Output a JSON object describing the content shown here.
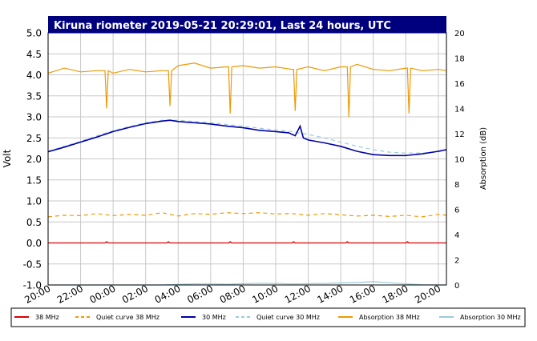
{
  "chart_data": {
    "type": "line",
    "title": "Kiruna riometer 2019-05-21 20:29:01, Last 24 hours, UTC",
    "ylabel": "Volt",
    "y2label": "Absorption (dB)",
    "ylim": [
      -1.0,
      5.0
    ],
    "y2lim": [
      0,
      20
    ],
    "xlim": [
      20,
      44.5
    ],
    "grid": true,
    "legend_position": "bottom",
    "y_ticks": [
      "5.0",
      "4.5",
      "4.0",
      "3.5",
      "3.0",
      "2.5",
      "2.0",
      "1.5",
      "1.0",
      "0.5",
      "0.0",
      "-0.5",
      "-1.0"
    ],
    "y2_ticks": [
      "20",
      "18",
      "16",
      "14",
      "12",
      "10",
      "8",
      "6",
      "4",
      "2",
      "0"
    ],
    "x_ticks": [
      "20:00",
      "22:00",
      "00:00",
      "02:00",
      "04:00",
      "06:00",
      "08:00",
      "10:00",
      "12:00",
      "14:00",
      "16:00",
      "18:00",
      "20:00"
    ],
    "series": [
      {
        "name": "38 MHz",
        "color": "#dd0000",
        "dash": "solid",
        "axis": "left",
        "x": [
          20,
          23.5,
          23.6,
          23.7,
          27.3,
          27.4,
          27.5,
          31.1,
          31.2,
          31.3,
          35.0,
          35.1,
          35.2,
          38.3,
          38.4,
          38.5,
          42.0,
          42.1,
          42.2,
          44.5
        ],
        "values": [
          0.0,
          0.0,
          0.03,
          0.0,
          0.0,
          0.03,
          0.0,
          0.0,
          0.03,
          0.0,
          0.0,
          0.03,
          0.0,
          0.0,
          0.03,
          0.0,
          0.0,
          0.03,
          0.0,
          0.0
        ]
      },
      {
        "name": "Quiet curve 38 MHz",
        "color": "#ee9900",
        "dash": "dashed",
        "axis": "left",
        "x": [
          20,
          21,
          22,
          23,
          24,
          25,
          26,
          27,
          28,
          29,
          30,
          31,
          32,
          33,
          34,
          35,
          36,
          37,
          38,
          39,
          40,
          41,
          42,
          43,
          44,
          44.5
        ],
        "values": [
          0.62,
          0.66,
          0.65,
          0.7,
          0.65,
          0.68,
          0.66,
          0.72,
          0.64,
          0.7,
          0.68,
          0.72,
          0.7,
          0.72,
          0.69,
          0.7,
          0.66,
          0.7,
          0.67,
          0.64,
          0.66,
          0.63,
          0.66,
          0.62,
          0.68,
          0.66
        ]
      },
      {
        "name": "30 MHz",
        "color": "#0000aa",
        "dash": "solid",
        "axis": "left",
        "x": [
          20,
          21,
          22,
          23,
          24,
          25,
          26,
          27,
          27.5,
          28,
          29,
          30,
          31,
          32,
          33,
          34,
          34.8,
          35.2,
          35.5,
          35.7,
          36,
          37,
          38,
          39,
          40,
          41,
          42,
          43,
          44,
          44.5
        ],
        "values": [
          2.17,
          2.28,
          2.4,
          2.52,
          2.65,
          2.75,
          2.84,
          2.9,
          2.92,
          2.89,
          2.86,
          2.83,
          2.78,
          2.74,
          2.68,
          2.65,
          2.62,
          2.55,
          2.78,
          2.5,
          2.45,
          2.38,
          2.3,
          2.18,
          2.1,
          2.08,
          2.08,
          2.12,
          2.18,
          2.22
        ]
      },
      {
        "name": "Quiet curve 30 MHz",
        "color": "#99ccdd",
        "dash": "dashed",
        "axis": "left",
        "x": [
          20,
          21,
          22,
          23,
          24,
          25,
          26,
          27,
          28,
          29,
          30,
          31,
          32,
          33,
          34,
          35,
          36,
          37,
          38,
          39,
          40,
          41,
          42,
          43,
          44,
          44.5
        ],
        "values": [
          2.18,
          2.3,
          2.42,
          2.55,
          2.67,
          2.77,
          2.86,
          2.92,
          2.92,
          2.89,
          2.86,
          2.82,
          2.78,
          2.73,
          2.69,
          2.65,
          2.58,
          2.5,
          2.4,
          2.3,
          2.22,
          2.16,
          2.14,
          2.14,
          2.17,
          2.2
        ]
      },
      {
        "name": "Absorption 38 MHz",
        "color": "#ee9900",
        "dash": "solid",
        "axis": "right",
        "x": [
          20,
          21,
          22,
          23,
          23.5,
          23.6,
          23.7,
          24,
          25,
          26,
          27,
          27.4,
          27.5,
          27.6,
          28,
          29,
          30,
          31,
          31.1,
          31.2,
          31.3,
          32,
          33,
          34,
          35,
          35.1,
          35.2,
          35.3,
          36,
          37,
          38,
          38.4,
          38.5,
          38.6,
          39,
          40,
          41,
          42,
          42.1,
          42.2,
          42.3,
          43,
          44,
          44.5
        ],
        "values": [
          16.8,
          17.2,
          16.9,
          17.0,
          17.0,
          14.0,
          17.0,
          16.8,
          17.1,
          16.9,
          17.0,
          17.0,
          14.2,
          17.0,
          17.4,
          17.6,
          17.2,
          17.3,
          17.3,
          13.6,
          17.3,
          17.4,
          17.2,
          17.3,
          17.1,
          17.1,
          13.8,
          17.1,
          17.3,
          17.0,
          17.3,
          17.3,
          13.3,
          17.3,
          17.5,
          17.1,
          17.0,
          17.2,
          17.2,
          13.6,
          17.2,
          17.0,
          17.1,
          17.0
        ]
      },
      {
        "name": "Absorption 30 MHz",
        "color": "#99ccdd",
        "dash": "solid",
        "axis": "right",
        "x": [
          20,
          21,
          22,
          23,
          24,
          25,
          26,
          27,
          28,
          29,
          30,
          31,
          32,
          33,
          34,
          35,
          36,
          37,
          38,
          39,
          40,
          41,
          42,
          43,
          44,
          44.5
        ],
        "values": [
          0.0,
          0.0,
          0.0,
          0.0,
          0.0,
          0.0,
          0.0,
          0.0,
          0.05,
          0.08,
          0.08,
          0.06,
          0.1,
          0.14,
          0.12,
          0.08,
          0.1,
          0.12,
          0.16,
          0.2,
          0.26,
          0.18,
          0.08,
          0.02,
          0.0,
          0.0
        ]
      }
    ]
  }
}
